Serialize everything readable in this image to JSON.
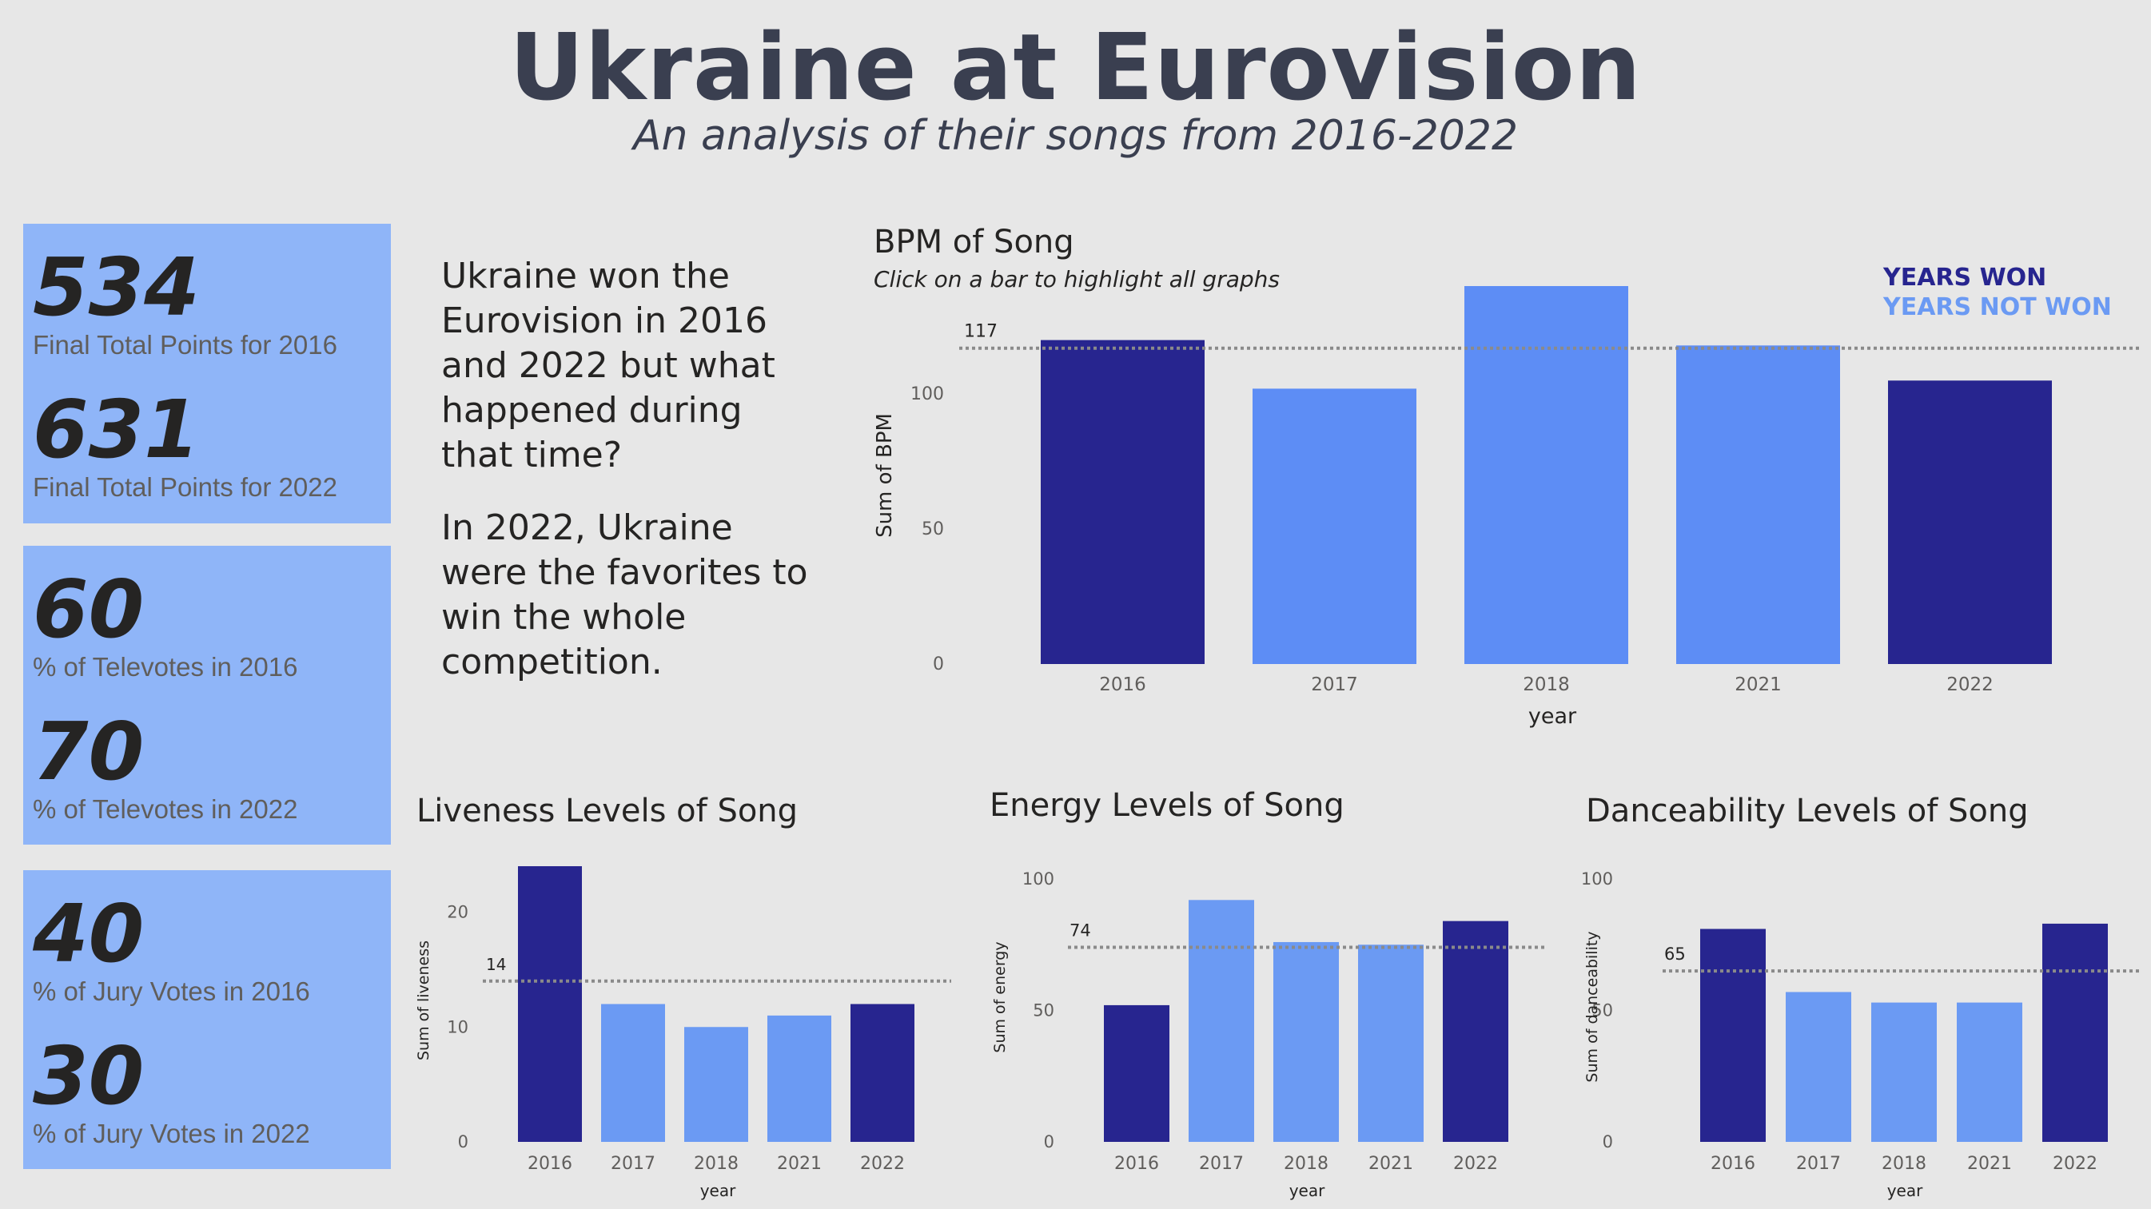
{
  "header": {
    "title": "Ukraine at Eurovision",
    "subtitle": "An analysis of their songs from 2016-2022"
  },
  "kpi_cards": [
    {
      "items": [
        {
          "value": "534",
          "label": "Final Total Points for 2016"
        },
        {
          "value": "631",
          "label": "Final Total Points for 2022"
        }
      ]
    },
    {
      "items": [
        {
          "value": "60",
          "label": "% of Televotes in 2016"
        },
        {
          "value": "70",
          "label": "% of Televotes in 2022"
        }
      ]
    },
    {
      "items": [
        {
          "value": "40",
          "label": "% of Jury Votes in 2016"
        },
        {
          "value": "30",
          "label": "% of Jury Votes in 2022"
        }
      ]
    }
  ],
  "narrative": {
    "p1": "Ukraine won the Eurovision in 2016 and 2022 but what happened during that time?",
    "p2": "In 2022, Ukraine were the favorites to win the whole competition."
  },
  "legend": {
    "won": "YEARS WON",
    "not_won": "YEARS NOT WON"
  },
  "colors": {
    "won": "#27258f",
    "not_won": "#5d8df5",
    "not_won_light": "#6b9af3",
    "reference_line": "#8a8a8a",
    "axis_text": "#605e5c"
  },
  "chart_data": [
    {
      "id": "bpm",
      "type": "bar",
      "title": "BPM of Song",
      "hint": "Click on a bar to highlight all graphs",
      "xlabel": "year",
      "ylabel": "Sum of BPM",
      "categories": [
        "2016",
        "2017",
        "2018",
        "2021",
        "2022"
      ],
      "values": [
        120,
        102,
        140,
        118,
        105
      ],
      "won": [
        true,
        false,
        false,
        false,
        true
      ],
      "yticks": [
        0,
        50,
        100
      ],
      "ylim": [
        0,
        140
      ],
      "reference_line": {
        "value": 117,
        "label": "117"
      }
    },
    {
      "id": "liveness",
      "type": "bar",
      "title": "Liveness Levels of Song",
      "xlabel": "year",
      "ylabel": "Sum of liveness",
      "categories": [
        "2016",
        "2017",
        "2018",
        "2021",
        "2022"
      ],
      "values": [
        24,
        12,
        10,
        11,
        12
      ],
      "won": [
        true,
        false,
        false,
        false,
        true
      ],
      "yticks": [
        0,
        10,
        20
      ],
      "ylim": [
        0,
        24
      ],
      "reference_line": {
        "value": 14,
        "label": "14"
      }
    },
    {
      "id": "energy",
      "type": "bar",
      "title": "Energy Levels of Song",
      "xlabel": "year",
      "ylabel": "Sum of energy",
      "categories": [
        "2016",
        "2017",
        "2018",
        "2021",
        "2022"
      ],
      "values": [
        52,
        92,
        76,
        75,
        84
      ],
      "won": [
        true,
        false,
        false,
        false,
        true
      ],
      "yticks": [
        0,
        50,
        100
      ],
      "ylim": [
        0,
        100
      ],
      "reference_line": {
        "value": 74,
        "label": "74"
      }
    },
    {
      "id": "danceability",
      "type": "bar",
      "title": "Danceability Levels of Song",
      "xlabel": "year",
      "ylabel": "Sum of danceability",
      "categories": [
        "2016",
        "2017",
        "2018",
        "2021",
        "2022"
      ],
      "values": [
        81,
        57,
        53,
        53,
        83
      ],
      "won": [
        true,
        false,
        false,
        false,
        true
      ],
      "yticks": [
        0,
        50,
        100
      ],
      "ylim": [
        0,
        100
      ],
      "reference_line": {
        "value": 65,
        "label": "65"
      }
    }
  ]
}
